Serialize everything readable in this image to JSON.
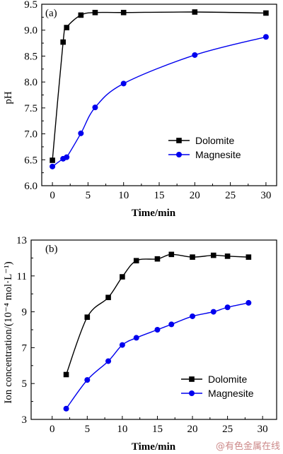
{
  "chart_data": [
    {
      "type": "line",
      "panel_label": "(a)",
      "xlabel": "Time/min",
      "ylabel": "pH",
      "xlim": [
        -1.5,
        31.5
      ],
      "ylim": [
        6.0,
        9.5
      ],
      "xticks": [
        "0",
        "5",
        "10",
        "15",
        "20",
        "25",
        "30"
      ],
      "yticks": [
        "6.0",
        "6.5",
        "7.0",
        "7.5",
        "8.0",
        "8.5",
        "9.0",
        "9.5"
      ],
      "legend_position": "lower-right",
      "series": [
        {
          "name": "Dolomite",
          "marker": "square",
          "color": "#000000",
          "x": [
            0,
            1.5,
            2,
            4,
            6,
            10,
            20,
            30
          ],
          "y": [
            6.49,
            8.77,
            9.05,
            9.29,
            9.34,
            9.34,
            9.35,
            9.33
          ]
        },
        {
          "name": "Magnesite",
          "marker": "circle",
          "color": "#0000ee",
          "x": [
            0,
            1.5,
            2,
            4,
            6,
            10,
            20,
            30
          ],
          "y": [
            6.37,
            6.52,
            6.55,
            7.01,
            7.51,
            7.97,
            8.52,
            8.87
          ]
        }
      ]
    },
    {
      "type": "line",
      "panel_label": "(b)",
      "xlabel": "Time/min",
      "ylabel": "Ion concentration/(10⁻⁴ mol·L⁻¹)",
      "xlim": [
        -3,
        32
      ],
      "ylim": [
        3,
        13
      ],
      "xticks": [
        "0",
        "5",
        "10",
        "15",
        "20",
        "25",
        "30"
      ],
      "yticks": [
        "3",
        "5",
        "7",
        "9",
        "11",
        "13"
      ],
      "legend_position": "lower-right",
      "series": [
        {
          "name": "Dolomite",
          "marker": "square",
          "color": "#000000",
          "x": [
            2,
            5,
            8,
            10,
            12,
            15,
            17,
            20,
            23,
            25,
            28
          ],
          "y": [
            5.5,
            8.7,
            9.8,
            10.95,
            11.85,
            11.95,
            12.2,
            12.05,
            12.15,
            12.1,
            12.05
          ]
        },
        {
          "name": "Magnesite",
          "marker": "circle",
          "color": "#0000ee",
          "x": [
            2,
            5,
            8,
            10,
            12,
            15,
            17,
            20,
            23,
            25,
            28
          ],
          "y": [
            3.6,
            5.2,
            6.25,
            7.15,
            7.55,
            8.0,
            8.3,
            8.75,
            9.0,
            9.25,
            9.5
          ]
        }
      ]
    }
  ],
  "watermark": "@有色金属在线"
}
